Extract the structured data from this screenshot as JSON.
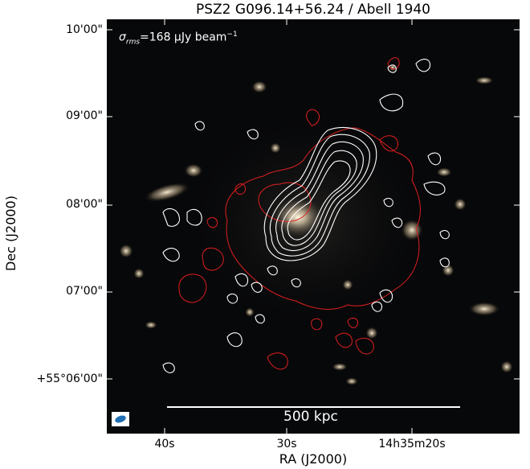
{
  "figure": {
    "title": "PSZ2 G096.14+56.24 / Abell 1940",
    "ylabel": "Dec (J2000)",
    "xlabel": "RA (J2000)",
    "y_ticks": [
      "10'00\"",
      "09'00\"",
      "08'00\"",
      "07'00\"",
      "+55°06'00\""
    ],
    "x_ticks": [
      "40s",
      "30s",
      "14h35m20s"
    ],
    "rms": {
      "symbol": "σ",
      "subscript": "rms",
      "text": "=168 μJy beam",
      "exponent": "−1"
    },
    "scalebar_label": "500 kpc",
    "contour_colors": {
      "radio_low_res": "#e01f1f",
      "radio_high_res": "#ffffff"
    },
    "beam_color": "#1f6fb4"
  }
}
